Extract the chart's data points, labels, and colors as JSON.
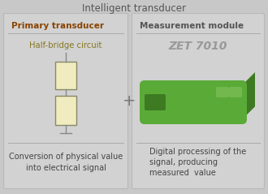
{
  "title": "Intelligent transducer",
  "title_color": "#555555",
  "bg_color": "#c8c8c8",
  "panel_color": "#d2d2d2",
  "panel_edge_color": "#b8b8b8",
  "left_panel": {
    "label": "Primary transducer",
    "label_color": "#884400",
    "sublabel": "Half-bridge circuit",
    "sublabel_color": "#887722",
    "desc": "Conversion of physical value\ninto electrical signal",
    "desc_color": "#444444"
  },
  "right_panel": {
    "label": "Measurement module",
    "label_color": "#555555",
    "sublabel": "ZET 7010",
    "sublabel_color": "#999999",
    "desc": "Digital processing of the\nsignal, producing\nmeasured  value",
    "desc_color": "#444444"
  },
  "plus_color": "#777777",
  "resistor_body_color": "#f0ecc0",
  "resistor_edge_color": "#888866",
  "resistor_line_color": "#888888",
  "device_green_top": "#5aaa38",
  "device_green_side": "#3d7a22",
  "device_green_front": "#4a8c28",
  "device_green_light": "#72b84e"
}
